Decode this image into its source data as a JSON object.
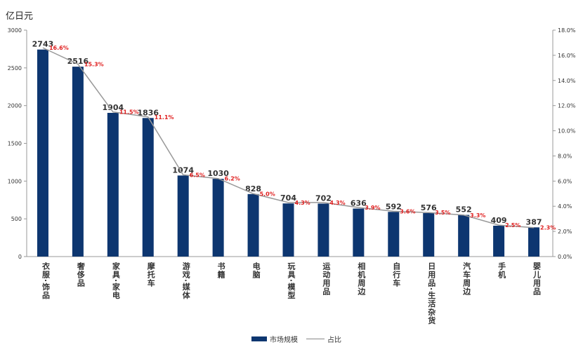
{
  "chart_data": {
    "type": "bar",
    "unit_label": "亿日元",
    "categories": [
      "衣服·饰品",
      "奢侈品",
      "家具·家电",
      "摩托车",
      "游戏·媒体",
      "书籍",
      "电脑",
      "玩具·模型",
      "运动用品",
      "相机周边",
      "自行车",
      "日用品·生活杂货",
      "汽车周边",
      "手机",
      "婴儿用品"
    ],
    "series": [
      {
        "name": "市场规模",
        "type": "bar",
        "axis": "left",
        "color": "#0d3670",
        "values": [
          2743,
          2516,
          1904,
          1836,
          1074,
          1030,
          828,
          704,
          702,
          636,
          592,
          576,
          552,
          409,
          387
        ]
      },
      {
        "name": "占比",
        "type": "line",
        "axis": "right",
        "color": "#999999",
        "label_color": "#e02020",
        "values": [
          16.6,
          15.3,
          11.5,
          11.1,
          6.5,
          6.2,
          5.0,
          4.3,
          4.3,
          3.9,
          3.6,
          3.5,
          3.3,
          2.5,
          2.3
        ]
      }
    ],
    "ylim": [
      0,
      3000
    ],
    "yticks": [
      0,
      500,
      1000,
      1500,
      2000,
      2500,
      3000
    ],
    "y2lim": [
      0,
      18
    ],
    "y2ticks": [
      "0.0%",
      "2.0%",
      "4.0%",
      "6.0%",
      "8.0%",
      "10.0%",
      "12.0%",
      "14.0%",
      "16.0%",
      "18.0%"
    ],
    "grid": false,
    "legend": "bottom"
  }
}
